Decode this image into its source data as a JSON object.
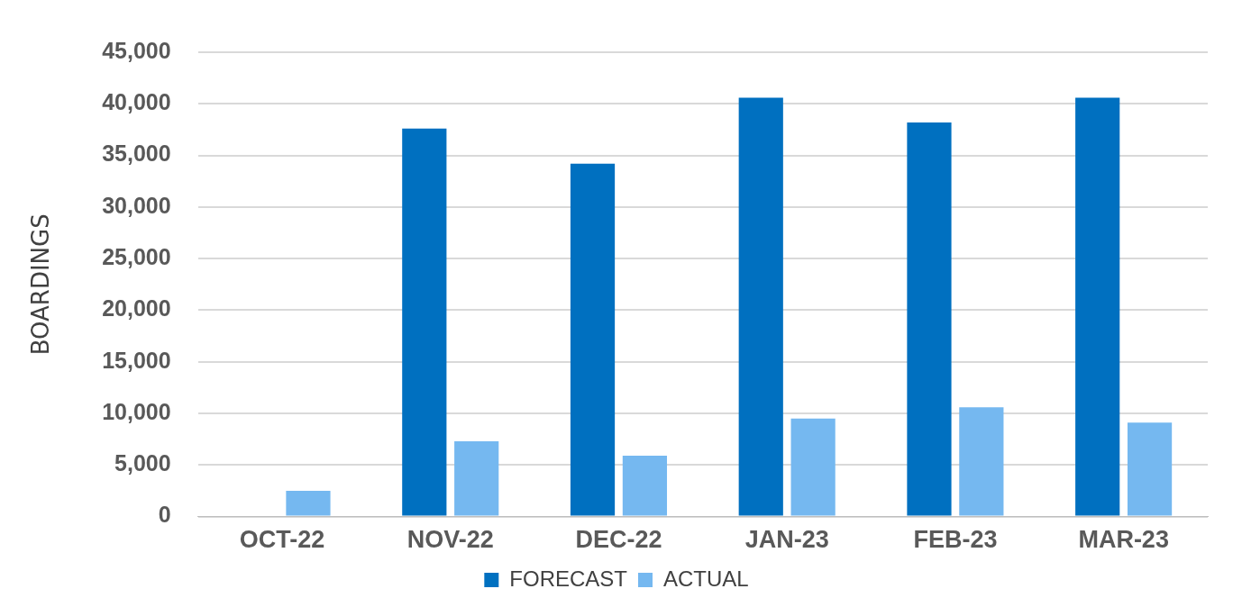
{
  "chart_data": {
    "type": "bar",
    "ylabel": "BOARDINGS",
    "categories": [
      "OCT-22",
      "NOV-22",
      "DEC-22",
      "JAN-23",
      "FEB-23",
      "MAR-23"
    ],
    "series": [
      {
        "name": "FORECAST",
        "color": "#0070c0",
        "values": [
          null,
          37600,
          34200,
          40600,
          38200,
          40600
        ]
      },
      {
        "name": "ACTUAL",
        "color": "#75b8f0",
        "values": [
          2500,
          7300,
          5900,
          9500,
          10600,
          9100
        ]
      }
    ],
    "ylim": [
      0,
      45000
    ],
    "yticks": [
      {
        "value": 0,
        "label": "0"
      },
      {
        "value": 5000,
        "label": "5,000"
      },
      {
        "value": 10000,
        "label": "10,000"
      },
      {
        "value": 15000,
        "label": "15,000"
      },
      {
        "value": 20000,
        "label": "20,000"
      },
      {
        "value": 25000,
        "label": "25,000"
      },
      {
        "value": 30000,
        "label": "30,000"
      },
      {
        "value": 35000,
        "label": "35,000"
      },
      {
        "value": 40000,
        "label": "40,000"
      },
      {
        "value": 45000,
        "label": "45,000"
      }
    ],
    "grid": "y",
    "legend": "bottom"
  }
}
